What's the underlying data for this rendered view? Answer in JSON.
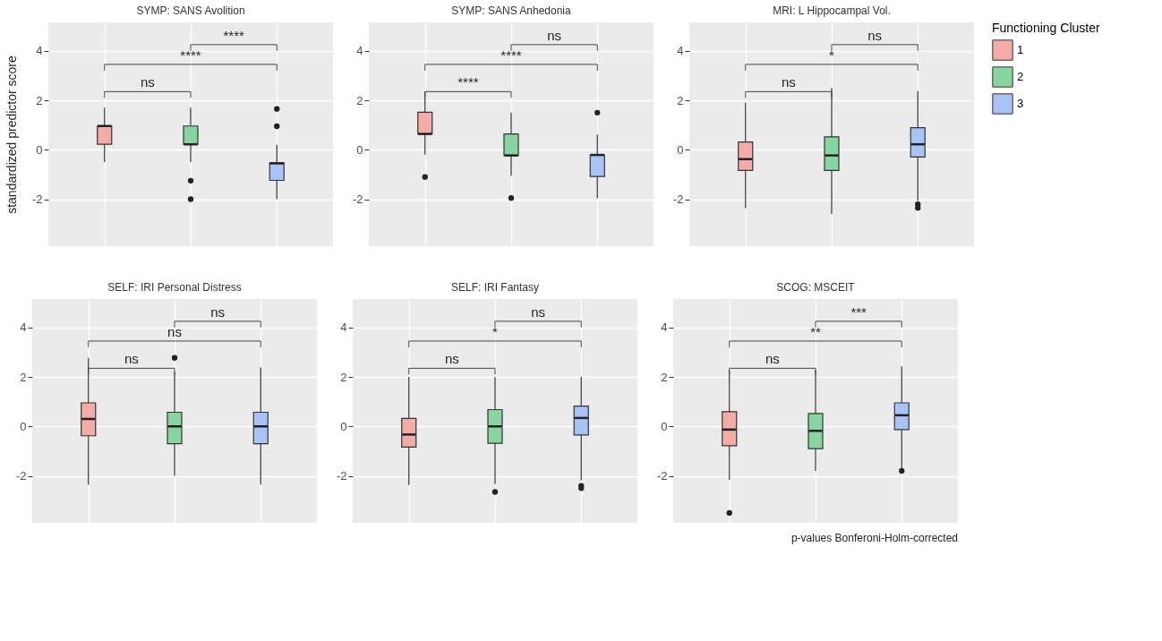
{
  "chart_data": [
    {
      "type": "box",
      "title": "SYMP: SANS Avolition",
      "ylabel": "standardized predictor score",
      "categories": [
        null,
        null,
        null
      ],
      "ylim": [
        -3.9,
        5.15
      ],
      "yticks": [
        -2,
        0,
        2,
        4
      ],
      "grid": true,
      "tick_labels": "y",
      "legend": false,
      "annotations": [
        "ns",
        "****",
        "****"
      ],
      "series": [
        {
          "color": "#f4aca7",
          "boxes": [
            {
              "low": -0.5,
              "q1": 0.22,
              "median": 0.96,
              "q3": 0.96,
              "high": 1.7
            },
            null,
            null
          ]
        },
        {
          "color": "#89d59f",
          "boxes": [
            null,
            {
              "low": -0.5,
              "q1": 0.22,
              "median": 0.22,
              "q3": 0.96,
              "high": 1.7,
              "outliers": [
                -1.25,
                -2.0
              ]
            },
            null
          ]
        },
        {
          "color": "#a9c3f4",
          "boxes": [
            null,
            null,
            {
              "low": -2.0,
              "q1": -1.24,
              "median": -0.55,
              "q3": -0.53,
              "high": 0.2,
              "outliers": [
                0.95,
                1.65
              ]
            }
          ]
        }
      ]
    },
    {
      "type": "box",
      "title": "SYMP: SANS Anhedonia",
      "categories": [
        null,
        null,
        null
      ],
      "ylim": [
        -3.9,
        5.15
      ],
      "yticks": [
        -2,
        0,
        2,
        4
      ],
      "grid": true,
      "tick_labels": "y",
      "legend": false,
      "annotations": [
        "****",
        "****",
        "ns"
      ],
      "series": [
        {
          "color": "#f4aca7",
          "boxes": [
            {
              "low": -0.2,
              "q1": 0.64,
              "median": 0.64,
              "q3": 1.52,
              "high": 2.35,
              "outliers": [
                -1.1
              ]
            },
            null,
            null
          ]
        },
        {
          "color": "#89d59f",
          "boxes": [
            null,
            {
              "low": -1.06,
              "q1": -0.23,
              "median": -0.23,
              "q3": 0.64,
              "high": 1.5,
              "outliers": [
                -1.95
              ]
            },
            null
          ]
        },
        {
          "color": "#a9c3f4",
          "boxes": [
            null,
            null,
            {
              "low": -1.96,
              "q1": -1.08,
              "median": -0.21,
              "q3": -0.21,
              "high": 0.62,
              "outliers": [
                1.5
              ]
            }
          ]
        }
      ]
    },
    {
      "type": "box",
      "title": "MRI: L Hippocampal Vol.",
      "categories": [
        null,
        null,
        null
      ],
      "ylim": [
        -3.9,
        5.15
      ],
      "yticks": [
        -2,
        0,
        2,
        4
      ],
      "grid": true,
      "tick_labels": "y",
      "legend": "right",
      "legend_title": "Functioning Cluster",
      "annotations": [
        "ns",
        "*",
        "ns"
      ],
      "series": [
        {
          "name": "1",
          "color": "#f4aca7",
          "boxes": [
            {
              "low": -2.36,
              "q1": -0.84,
              "median": -0.38,
              "q3": 0.31,
              "high": 1.9
            },
            null,
            null
          ]
        },
        {
          "name": "2",
          "color": "#89d59f",
          "boxes": [
            null,
            {
              "low": -2.6,
              "q1": -0.84,
              "median": -0.23,
              "q3": 0.52,
              "high": 2.5
            },
            null
          ]
        },
        {
          "name": "3",
          "color": "#a9c3f4",
          "boxes": [
            null,
            null,
            {
              "low": -2.06,
              "q1": -0.29,
              "median": 0.22,
              "q3": 0.89,
              "high": 2.37,
              "outliers": [
                -2.2,
                -2.35
              ]
            }
          ]
        }
      ]
    },
    {
      "type": "box",
      "title": "SELF: IRI Personal Distress",
      "categories": [
        null,
        null,
        null
      ],
      "ylim": [
        -3.9,
        5.15
      ],
      "yticks": [
        -2,
        0,
        2,
        4
      ],
      "grid": true,
      "tick_labels": "y",
      "legend": false,
      "annotations": [
        "ns",
        "ns",
        "ns"
      ],
      "series": [
        {
          "color": "#f4aca7",
          "boxes": [
            {
              "low": -2.35,
              "q1": -0.38,
              "median": 0.3,
              "q3": 0.95,
              "high": 2.77
            },
            null,
            null
          ]
        },
        {
          "color": "#89d59f",
          "boxes": [
            null,
            {
              "low": -2.0,
              "q1": -0.7,
              "median": 0.0,
              "q3": 0.57,
              "high": 2.2,
              "outliers": [
                2.77
              ]
            },
            null
          ]
        },
        {
          "color": "#a9c3f4",
          "boxes": [
            null,
            null,
            {
              "low": -2.35,
              "q1": -0.7,
              "median": 0.0,
              "q3": 0.57,
              "high": 2.38
            }
          ]
        }
      ]
    },
    {
      "type": "box",
      "title": "SELF: IRI Fantasy",
      "categories": [
        null,
        null,
        null
      ],
      "ylim": [
        -3.9,
        5.15
      ],
      "yticks": [
        -2,
        0,
        2,
        4
      ],
      "grid": true,
      "tick_labels": "y",
      "legend": false,
      "annotations": [
        "ns",
        "*",
        "ns"
      ],
      "series": [
        {
          "color": "#f4aca7",
          "boxes": [
            {
              "low": -2.37,
              "q1": -0.84,
              "median": -0.33,
              "q3": 0.32,
              "high": 2.0
            },
            null,
            null
          ]
        },
        {
          "color": "#89d59f",
          "boxes": [
            null,
            {
              "low": -2.33,
              "q1": -0.68,
              "median": 0.0,
              "q3": 0.68,
              "high": 2.0,
              "outliers": [
                -2.65
              ]
            },
            null
          ]
        },
        {
          "color": "#a9c3f4",
          "boxes": [
            null,
            null,
            {
              "low": -2.18,
              "q1": -0.35,
              "median": 0.34,
              "q3": 0.82,
              "high": 2.0,
              "outliers": [
                -2.4,
                -2.5
              ]
            }
          ]
        }
      ]
    },
    {
      "type": "box",
      "title": "SCOG: MSCEIT",
      "categories": [
        null,
        null,
        null
      ],
      "ylim": [
        -3.9,
        5.15
      ],
      "yticks": [
        -2,
        0,
        2,
        4
      ],
      "grid": true,
      "tick_labels": "y",
      "legend": false,
      "annotations": [
        "ns",
        "**",
        "***",
        "p-values Bonferoni-Holm-corrected"
      ],
      "series": [
        {
          "color": "#f4aca7",
          "boxes": [
            {
              "low": -2.16,
              "q1": -0.78,
              "median": -0.13,
              "q3": 0.59,
              "high": 2.27,
              "outliers": [
                -3.5
              ]
            },
            null,
            null
          ]
        },
        {
          "color": "#89d59f",
          "boxes": [
            null,
            {
              "low": -1.8,
              "q1": -0.9,
              "median": -0.18,
              "q3": 0.52,
              "high": 2.27
            },
            null
          ]
        },
        {
          "color": "#a9c3f4",
          "boxes": [
            null,
            null,
            {
              "low": -1.75,
              "q1": -0.13,
              "median": 0.45,
              "q3": 0.95,
              "high": 2.43,
              "outliers": [
                -1.8
              ]
            }
          ]
        }
      ]
    }
  ]
}
